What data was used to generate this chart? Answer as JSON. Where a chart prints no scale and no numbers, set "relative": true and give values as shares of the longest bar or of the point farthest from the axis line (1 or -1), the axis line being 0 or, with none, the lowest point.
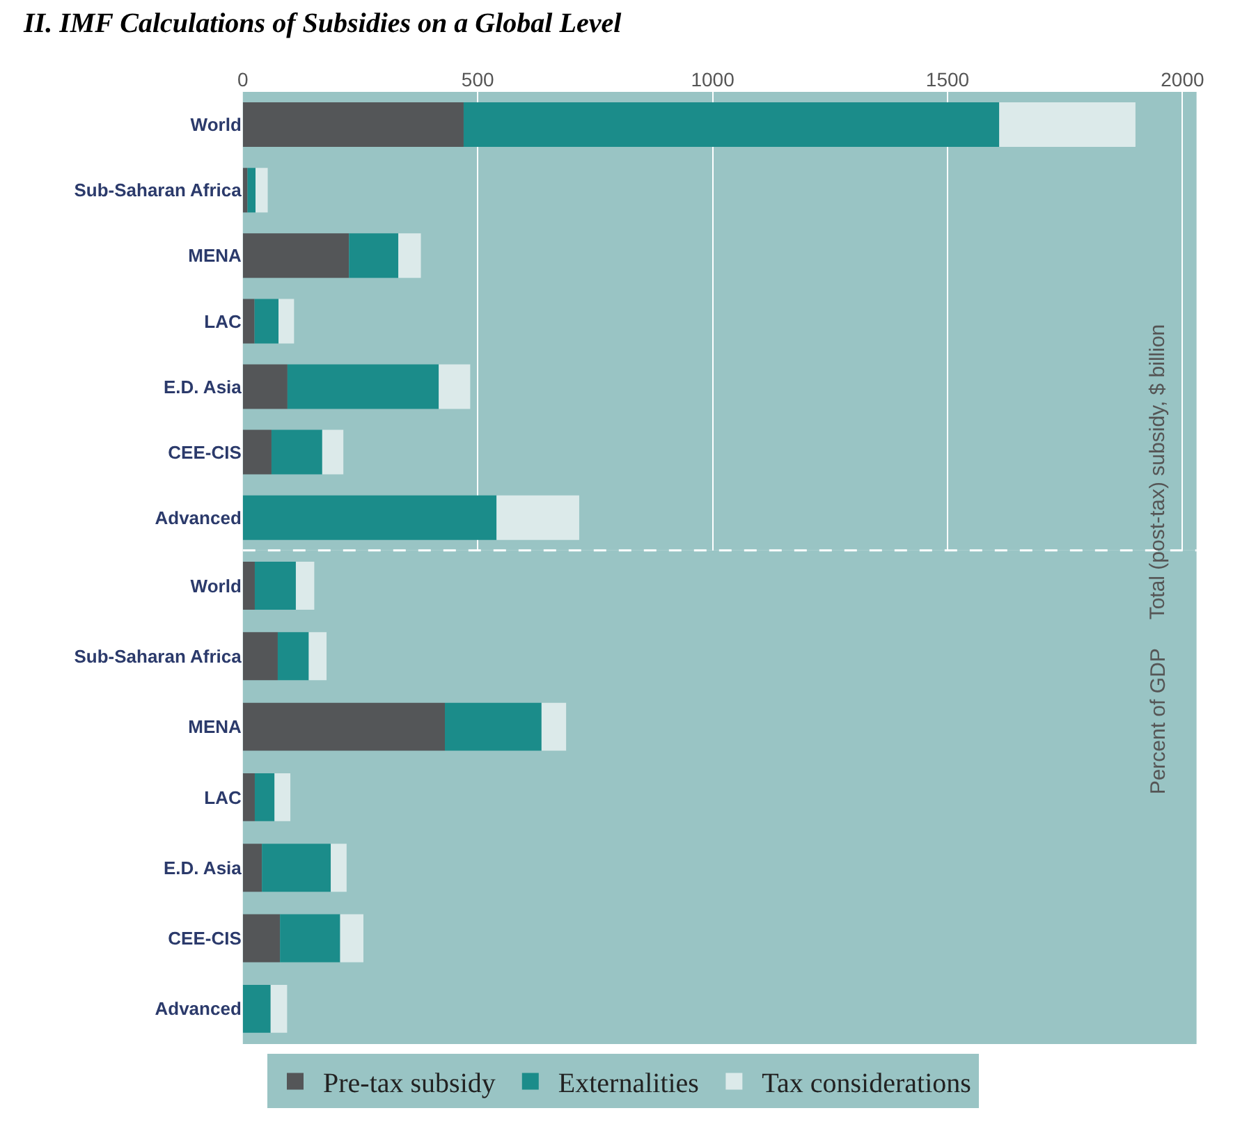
{
  "chart_data": [
    {
      "type": "bar",
      "orientation": "horizontal",
      "stacked": true,
      "title": "II. IMF Calculations of Subsidies on a Global Level",
      "ylabel": "Total (post-tax) subsidy, $ billion",
      "categories": [
        "World",
        "Sub-Saharan Africa",
        "MENA",
        "LAC",
        "E.D. Asia",
        "CEE-CIS",
        "Advanced"
      ],
      "series": [
        {
          "name": "Pre-tax subsidy",
          "color": "#545658",
          "values": [
            470,
            10,
            226,
            25,
            95,
            61,
            0
          ]
        },
        {
          "name": "Externalities",
          "color": "#1b8c8a",
          "values": [
            1140,
            17,
            105,
            51,
            322,
            108,
            540
          ]
        },
        {
          "name": "Tax considerations",
          "color": "#dceaea",
          "values": [
            290,
            26,
            48,
            33,
            67,
            45,
            176
          ]
        }
      ],
      "xlim": [
        0,
        2030
      ],
      "xticks": [
        0,
        500,
        1000,
        1500,
        2000
      ],
      "grid": "x",
      "legend": "bottom"
    },
    {
      "type": "bar",
      "orientation": "horizontal",
      "stacked": true,
      "relative": true,
      "ylabel": "Percent of GDP",
      "tick_labels": "y",
      "categories": [
        "World",
        "Sub-Saharan Africa",
        "MENA",
        "LAC",
        "E.D. Asia",
        "CEE-CIS",
        "Advanced"
      ],
      "series": [
        {
          "name": "Pre-tax subsidy",
          "color": "#545658",
          "values": [
            0.037,
            0.108,
            0.625,
            0.037,
            0.059,
            0.115,
            0
          ]
        },
        {
          "name": "Externalities",
          "color": "#1b8c8a",
          "values": [
            0.127,
            0.096,
            0.299,
            0.061,
            0.213,
            0.186,
            0.086
          ]
        },
        {
          "name": "Tax considerations",
          "color": "#dceaea",
          "values": [
            0.057,
            0.055,
            0.076,
            0.049,
            0.049,
            0.072,
            0.051
          ]
        }
      ]
    }
  ]
}
